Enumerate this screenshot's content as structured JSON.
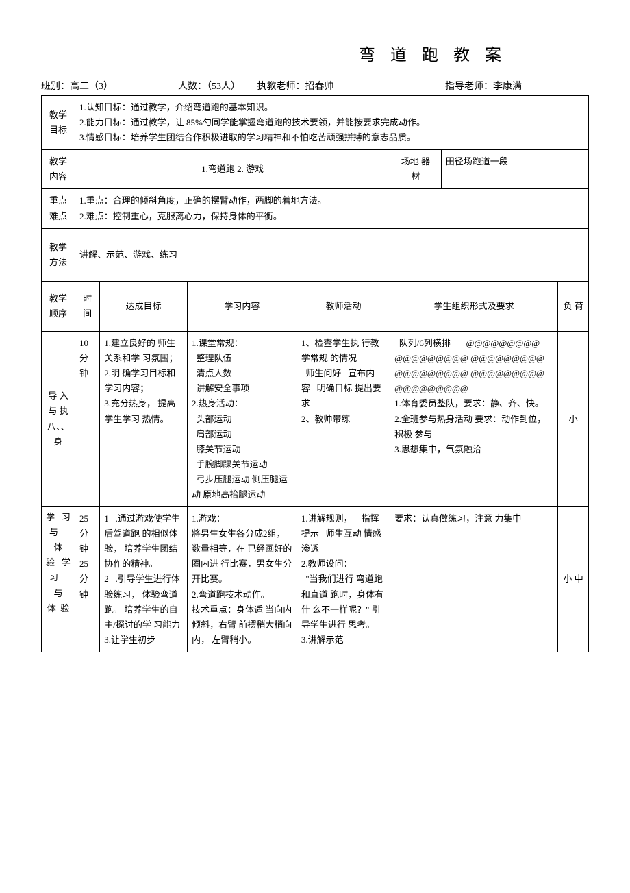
{
  "title": "弯 道 跑 教 案",
  "header": {
    "class_label": "班别：高二（3）",
    "count_label": "人数：（53人）",
    "teacher_label": "执教老师：招春帅",
    "advisor_label": "指导老师：李康满"
  },
  "rows": {
    "goal_label": "教学\n目标",
    "goal_text": "1.认知目标：通过教学，介绍弯道跑的基本知识。\n2.能力目标：通过教学，让 85%勺同学能掌握弯道跑的技术要领，并能按要求完成动作。\n3.情感目标：培养学生团结合作积极进取的学习精神和不怕吃苦顽强拼搏的意志品质。",
    "content_label": "教学\n内容",
    "content_text": "1.弯道跑 2. 游戏",
    "field_label": "场地 器\n材",
    "field_text": "田径场跑道一段",
    "keypoint_label": "重点\n难点",
    "keypoint_text": "1.重点：合理的倾斜角度，正确的摆臂动作，两脚的着地方法。\n2.难点：控制重心，克服离心力，保持身体的平衡。",
    "method_label": "教学\n方法",
    "method_text": "讲解、示范、游戏、练习"
  },
  "thead": {
    "seq": "教学\n顺序",
    "time": "时 间",
    "goal": "达成目标",
    "learn": "学习内容",
    "teacher": "教师活动",
    "org": "学生组织形式及要求",
    "load": "负 荷"
  },
  "section1": {
    "name": "导 入\n与 执\n八、、\n身",
    "time": "10\n分\n钟",
    "goal": "1.建立良好的 师生关系和学 习氛围；2.明 确学习目标和 学习内容；\n 3.充分热身， 提高学生学习 热情。",
    "learn": "1.课堂常规：\n  整理队伍\n  清点人数\n  讲解安全事项\n2.热身活动：\n  头部运动\n  肩部运动\n  膝关节运动\n  手腕脚踝关节运动\n  弓步压腿运动 侧压腿运动 原地高抬腿运动",
    "teacher": "1、检查学生执 行教学常规 的情况\n  师生问好   宣布内容   明确目标 提出要求\n2、教帅带练",
    "org": "  队列/6列横排       @@@@@@@@@ @@@@@@@@@ @@@@@@@@@ @@@@@@@@@ @@@@@@@@@ @@@@@@@@@\n1.体育委员整队，要求：静、齐、快。\n2.全班参与热身活动 要求：动作到位，积极 参与\n3.思想集中，气氛融洽",
    "load": "小"
  },
  "section2": {
    "name": "学   习\n与     体\n验   学\n习     与\n体  验",
    "time": "25\n分 钟\n25\n分 钟",
    "goal": "1   .通过游戏使学生后驾道跑 的相似体验， 培养学生团结 协作的精神。\n2   .引导学生进行体验练习， 体验弯道跑。 培养学生的自 主/探讨的学 习能力\n3.让学生初步",
    "learn": "1.游戏：\n將男生女生各分成2组，数量相等，在 已经画好的圈内进 行比赛，男女生分 开比赛。\n2.弯道跑技术动作。\n技术重点：身体适 当向内倾斜，右臂 前摆稍大稍向内， 左臂稍小。",
    "teacher": "1.讲解规则，    指挥提示   师生互动 情感渗透\n2.教师设问：\n  \"当我们进行 弯道跑和直道 跑时，身体有什 么不一样呢？\" 引导学生进行 思考。\n3.讲解示范",
    "org": "要求：认真做练习，注意 力集中",
    "load": "小 中"
  }
}
